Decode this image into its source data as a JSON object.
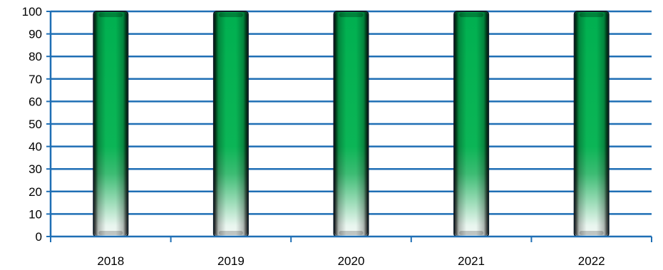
{
  "chart_data": {
    "type": "bar",
    "categories": [
      "2018",
      "2019",
      "2020",
      "2021",
      "2022"
    ],
    "values": [
      100,
      100,
      100,
      100,
      100
    ],
    "ylim": [
      0,
      100
    ],
    "yticks": [
      0,
      10,
      20,
      30,
      40,
      50,
      60,
      70,
      80,
      90,
      100
    ],
    "grid": true,
    "legend": "none",
    "colors": {
      "bar_top": "#00b050",
      "bar_mid": "#1fb45e",
      "bar_bottom": "#e8f5ee",
      "bar_edge": "#0d1a24",
      "grid": "#1f6fb5",
      "axis": "#1f6fb5"
    }
  }
}
